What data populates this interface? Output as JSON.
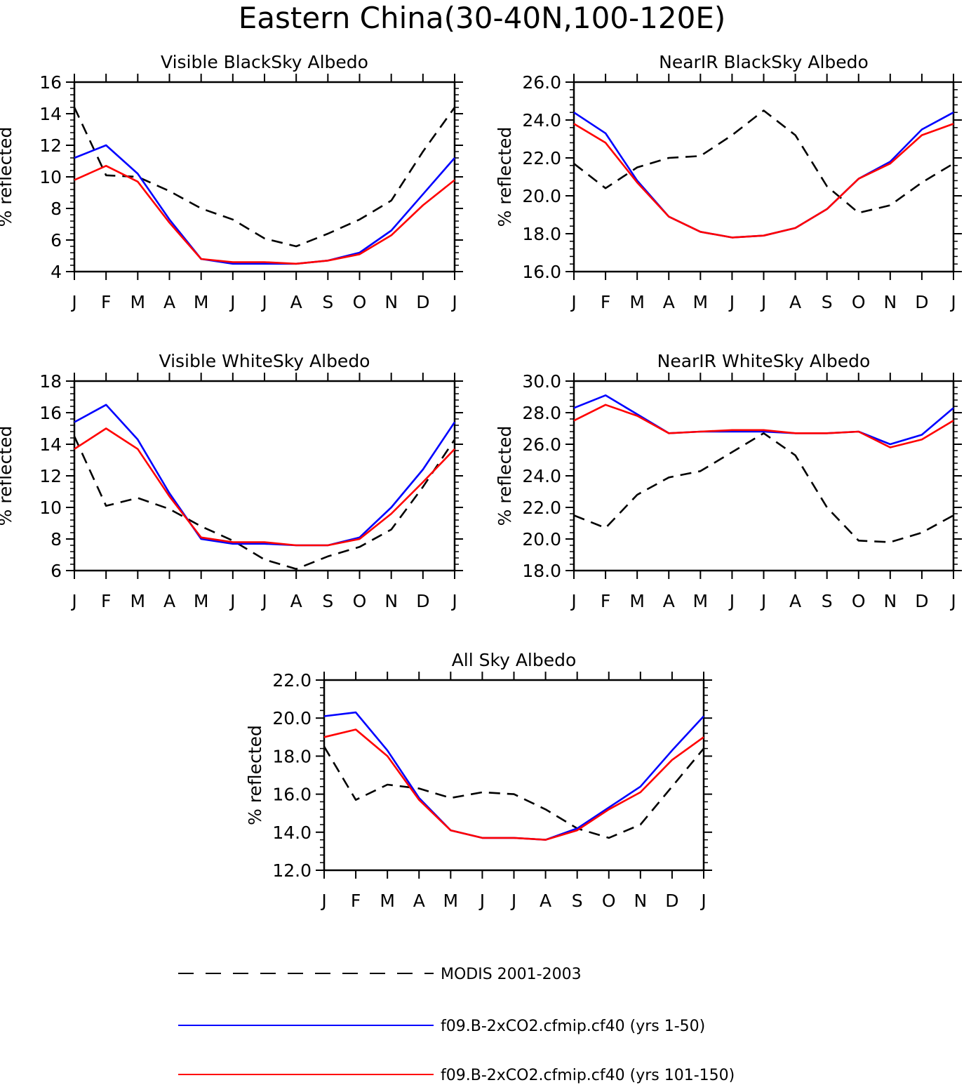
{
  "page_title": "Eastern China(30-40N,100-120E)",
  "months": [
    "J",
    "F",
    "M",
    "A",
    "M",
    "J",
    "J",
    "A",
    "S",
    "O",
    "N",
    "D",
    "J"
  ],
  "colors": {
    "modis": "#000000",
    "run1": "#0000ff",
    "run2": "#ff0000"
  },
  "legend": [
    {
      "key": "modis",
      "label": "MODIS 2001-2003",
      "style": "dashed"
    },
    {
      "key": "run1",
      "label": "f09.B-2xCO2.cfmip.cf40 (yrs 1-50)",
      "style": "solid"
    },
    {
      "key": "run2",
      "label": "f09.B-2xCO2.cfmip.cf40 (yrs 101-150)",
      "style": "solid"
    }
  ],
  "chart_data": [
    {
      "id": "vis-black",
      "type": "line",
      "title": "Visible BlackSky Albedo",
      "ylabel": "% reflected",
      "ylim": [
        4,
        16
      ],
      "yticks": [
        4,
        6,
        8,
        10,
        12,
        14,
        16
      ],
      "ytick_labels": [
        "4",
        "6",
        "8",
        "10",
        "12",
        "14",
        "16"
      ],
      "categories": [
        "J",
        "F",
        "M",
        "A",
        "M",
        "J",
        "J",
        "A",
        "S",
        "O",
        "N",
        "D",
        "J"
      ],
      "series": [
        {
          "key": "modis",
          "name": "MODIS 2001-2003",
          "values": [
            14.4,
            10.1,
            10.0,
            9.1,
            8.0,
            7.3,
            6.1,
            5.6,
            6.4,
            7.3,
            8.5,
            11.6,
            14.4
          ]
        },
        {
          "key": "run1",
          "name": "f09.B-2xCO2.cfmip.cf40 (yrs 1-50)",
          "values": [
            11.2,
            12.0,
            10.2,
            7.3,
            4.8,
            4.5,
            4.5,
            4.5,
            4.7,
            5.2,
            6.6,
            8.9,
            11.2
          ]
        },
        {
          "key": "run2",
          "name": "f09.B-2xCO2.cfmip.cf40 (yrs 101-150)",
          "values": [
            9.8,
            10.7,
            9.7,
            7.1,
            4.8,
            4.6,
            4.6,
            4.5,
            4.7,
            5.1,
            6.3,
            8.2,
            9.8
          ]
        }
      ]
    },
    {
      "id": "nir-black",
      "type": "line",
      "title": "NearIR BlackSky Albedo",
      "ylabel": "% reflected",
      "ylim": [
        16,
        26
      ],
      "yticks": [
        16,
        18,
        20,
        22,
        24,
        26
      ],
      "ytick_labels": [
        "16.0",
        "18.0",
        "20.0",
        "22.0",
        "24.0",
        "26.0"
      ],
      "categories": [
        "J",
        "F",
        "M",
        "A",
        "M",
        "J",
        "J",
        "A",
        "S",
        "O",
        "N",
        "D",
        "J"
      ],
      "series": [
        {
          "key": "modis",
          "name": "MODIS 2001-2003",
          "values": [
            21.7,
            20.4,
            21.5,
            22.0,
            22.1,
            23.2,
            24.5,
            23.2,
            20.5,
            19.1,
            19.5,
            20.7,
            21.7
          ]
        },
        {
          "key": "run1",
          "name": "f09.B-2xCO2.cfmip.cf40 (yrs 1-50)",
          "values": [
            24.4,
            23.3,
            20.8,
            18.9,
            18.1,
            17.8,
            17.9,
            18.3,
            19.3,
            20.9,
            21.8,
            23.5,
            24.4
          ]
        },
        {
          "key": "run2",
          "name": "f09.B-2xCO2.cfmip.cf40 (yrs 101-150)",
          "values": [
            23.8,
            22.8,
            20.7,
            18.9,
            18.1,
            17.8,
            17.9,
            18.3,
            19.3,
            20.9,
            21.7,
            23.2,
            23.8
          ]
        }
      ]
    },
    {
      "id": "vis-white",
      "type": "line",
      "title": "Visible WhiteSky Albedo",
      "ylabel": "% reflected",
      "ylim": [
        6,
        18
      ],
      "yticks": [
        6,
        8,
        10,
        12,
        14,
        16,
        18
      ],
      "ytick_labels": [
        "6",
        "8",
        "10",
        "12",
        "14",
        "16",
        "18"
      ],
      "categories": [
        "J",
        "F",
        "M",
        "A",
        "M",
        "J",
        "J",
        "A",
        "S",
        "O",
        "N",
        "D",
        "J"
      ],
      "series": [
        {
          "key": "modis",
          "name": "MODIS 2001-2003",
          "values": [
            14.5,
            10.1,
            10.6,
            9.9,
            8.8,
            7.9,
            6.7,
            6.1,
            6.9,
            7.5,
            8.6,
            11.3,
            14.3
          ]
        },
        {
          "key": "run1",
          "name": "f09.B-2xCO2.cfmip.cf40 (yrs 1-50)",
          "values": [
            15.4,
            16.5,
            14.3,
            10.9,
            8.0,
            7.7,
            7.7,
            7.6,
            7.6,
            8.1,
            10.0,
            12.4,
            15.4
          ]
        },
        {
          "key": "run2",
          "name": "f09.B-2xCO2.cfmip.cf40 (yrs 101-150)",
          "values": [
            13.7,
            15.0,
            13.7,
            10.7,
            8.1,
            7.8,
            7.8,
            7.6,
            7.6,
            8.0,
            9.6,
            11.6,
            13.7
          ]
        }
      ]
    },
    {
      "id": "nir-white",
      "type": "line",
      "title": "NearIR WhiteSky Albedo",
      "ylabel": "% reflected",
      "ylim": [
        18,
        30
      ],
      "yticks": [
        18,
        20,
        22,
        24,
        26,
        28,
        30
      ],
      "ytick_labels": [
        "18.0",
        "20.0",
        "22.0",
        "24.0",
        "26.0",
        "28.0",
        "30.0"
      ],
      "categories": [
        "J",
        "F",
        "M",
        "A",
        "M",
        "J",
        "J",
        "A",
        "S",
        "O",
        "N",
        "D",
        "J"
      ],
      "series": [
        {
          "key": "modis",
          "name": "MODIS 2001-2003",
          "values": [
            21.5,
            20.7,
            22.8,
            23.9,
            24.3,
            25.5,
            26.7,
            25.3,
            22.0,
            19.9,
            19.8,
            20.4,
            21.5
          ]
        },
        {
          "key": "run1",
          "name": "f09.B-2xCO2.cfmip.cf40 (yrs 1-50)",
          "values": [
            28.3,
            29.1,
            27.9,
            26.7,
            26.8,
            26.8,
            26.8,
            26.7,
            26.7,
            26.8,
            26.0,
            26.6,
            28.3
          ]
        },
        {
          "key": "run2",
          "name": "f09.B-2xCO2.cfmip.cf40 (yrs 101-150)",
          "values": [
            27.5,
            28.5,
            27.8,
            26.7,
            26.8,
            26.9,
            26.9,
            26.7,
            26.7,
            26.8,
            25.8,
            26.3,
            27.5
          ]
        }
      ]
    },
    {
      "id": "allsky",
      "type": "line",
      "title": "All Sky Albedo",
      "ylabel": "% reflected",
      "ylim": [
        12,
        22
      ],
      "yticks": [
        12,
        14,
        16,
        18,
        20,
        22
      ],
      "ytick_labels": [
        "12.0",
        "14.0",
        "16.0",
        "18.0",
        "20.0",
        "22.0"
      ],
      "categories": [
        "J",
        "F",
        "M",
        "A",
        "M",
        "J",
        "J",
        "A",
        "S",
        "O",
        "N",
        "D",
        "J"
      ],
      "series": [
        {
          "key": "modis",
          "name": "MODIS 2001-2003",
          "values": [
            18.5,
            15.7,
            16.5,
            16.3,
            15.8,
            16.1,
            16.0,
            15.2,
            14.2,
            13.7,
            14.4,
            16.4,
            18.4
          ]
        },
        {
          "key": "run1",
          "name": "f09.B-2xCO2.cfmip.cf40 (yrs 1-50)",
          "values": [
            20.1,
            20.3,
            18.3,
            15.8,
            14.1,
            13.7,
            13.7,
            13.6,
            14.2,
            15.3,
            16.4,
            18.3,
            20.1
          ]
        },
        {
          "key": "run2",
          "name": "f09.B-2xCO2.cfmip.cf40 (yrs 101-150)",
          "values": [
            19.0,
            19.4,
            18.0,
            15.7,
            14.1,
            13.7,
            13.7,
            13.6,
            14.1,
            15.2,
            16.1,
            17.8,
            19.0
          ]
        }
      ]
    }
  ]
}
